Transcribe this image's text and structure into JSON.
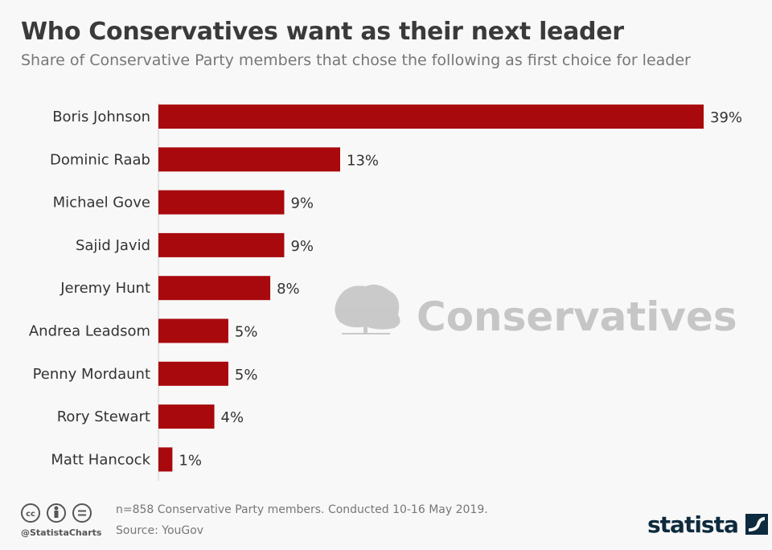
{
  "title": "Who Conservatives want as their next leader",
  "subtitle": "Share of Conservative Party members that chose the following as first choice for leader",
  "watermark": "Conservatives",
  "footer": {
    "note": "n=858 Conservative Party members. Conducted 10-16 May 2019.",
    "source": "Source: YouGov",
    "handle": "@StatistaCharts",
    "brand": "statista",
    "license_icons": [
      "cc-icon",
      "attribution-icon",
      "no-derivatives-icon"
    ]
  },
  "colors": {
    "bar": "#a8090d",
    "background": "#f8f8f8"
  },
  "chart_data": {
    "type": "bar",
    "orientation": "horizontal",
    "categories": [
      "Boris Johnson",
      "Dominic Raab",
      "Michael Gove",
      "Sajid Javid",
      "Jeremy Hunt",
      "Andrea Leadsom",
      "Penny Mordaunt",
      "Rory Stewart",
      "Matt Hancock"
    ],
    "values": [
      39,
      13,
      9,
      9,
      8,
      5,
      5,
      4,
      1
    ],
    "unit": "%",
    "xlim": [
      0,
      39
    ],
    "grid": false
  }
}
